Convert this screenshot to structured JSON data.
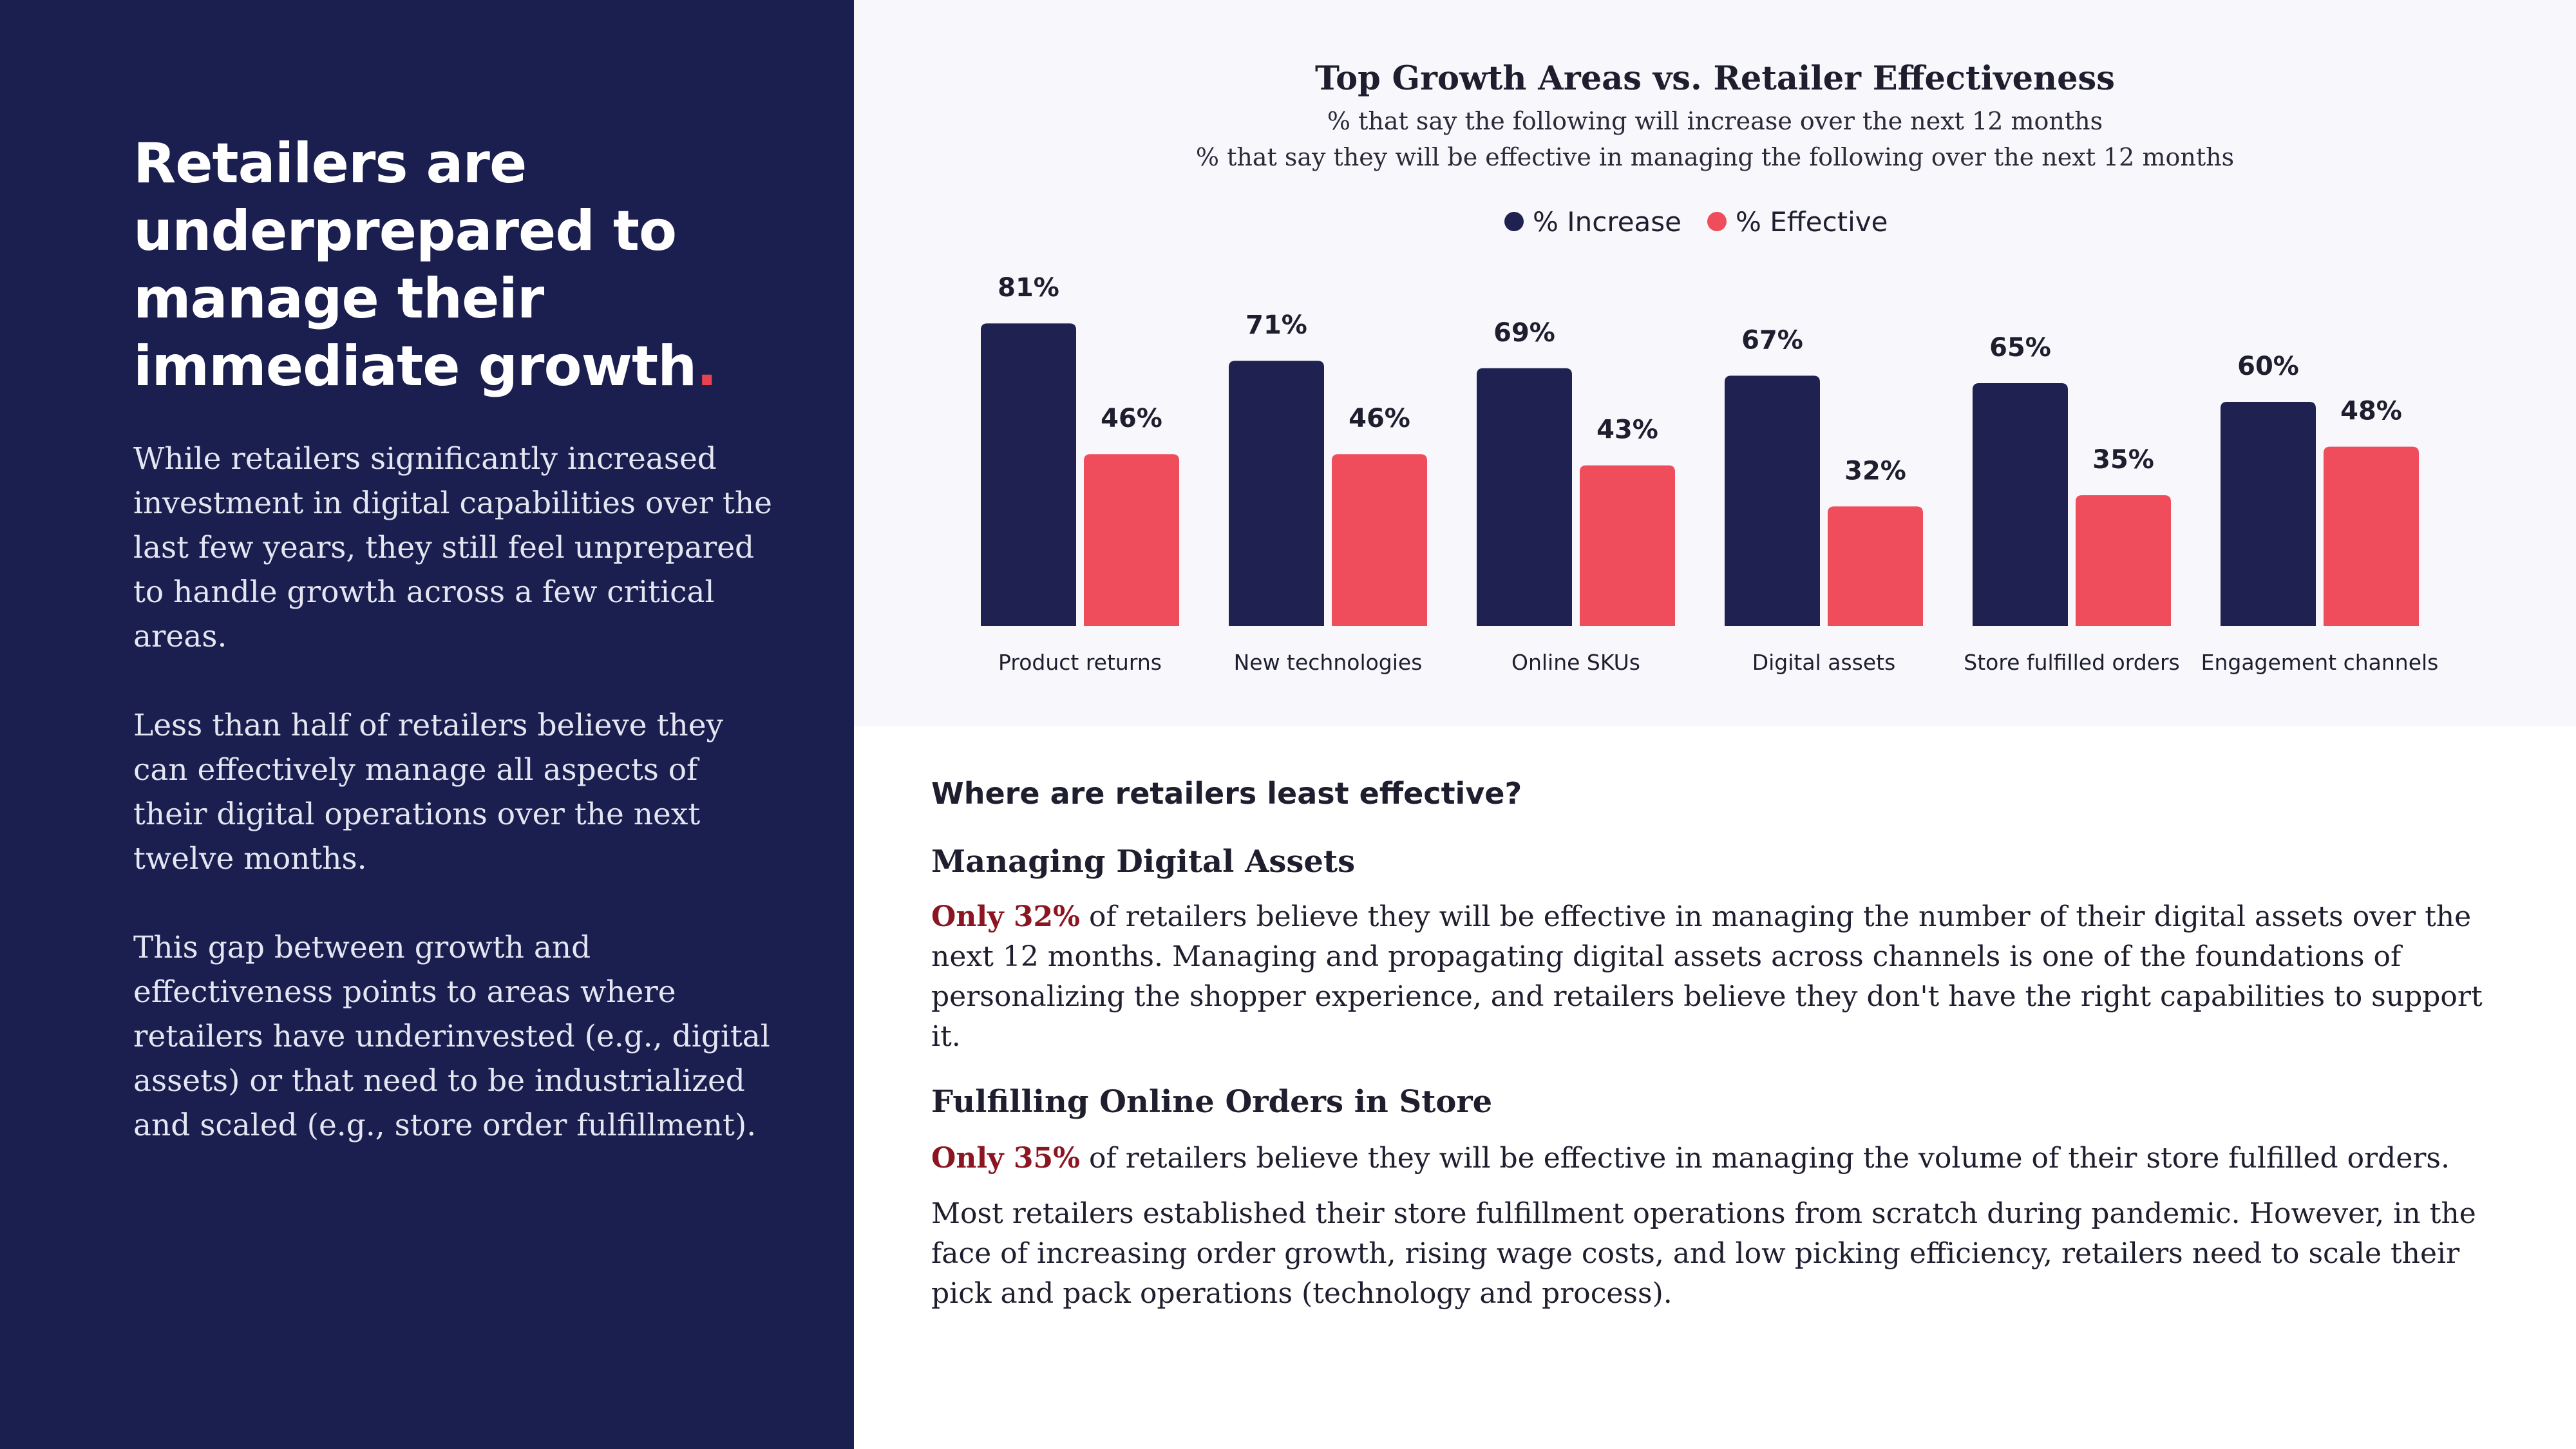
{
  "left": {
    "headline": "Retailers are underprepared to manage their immediate growth",
    "headline_dot": ".",
    "paragraphs": [
      "While retailers significantly increased investment in digital capabilities over the last few years, they still feel unprepared to handle growth across a few critical areas.",
      "Less than half of retailers believe they can effectively manage all aspects of their digital operations over the next twelve months.",
      "This gap between growth and effectiveness points to areas where retailers have underinvested (e.g., digital assets) or that need to be industrialized and scaled (e.g., store order fulfillment)."
    ]
  },
  "colors": {
    "navy": "#1b1f4f",
    "bar_increase": "#1f2250",
    "bar_effective": "#ef4d5c",
    "accent_red": "#8b1520"
  },
  "chart_data": {
    "type": "bar",
    "title": "Top Growth Areas vs. Retailer Effectiveness",
    "subtitle_lines": [
      "% that say the following will increase over the next 12 months",
      "% that say they will be effective in managing the following over the next 12 months"
    ],
    "categories": [
      "Product returns",
      "New technologies",
      "Online SKUs",
      "Digital assets",
      "Store fulfilled orders",
      "Engagement channels"
    ],
    "series": [
      {
        "name": "% Increase",
        "values": [
          81,
          71,
          69,
          67,
          65,
          60
        ],
        "color": "#1f2250"
      },
      {
        "name": "% Effective",
        "values": [
          46,
          46,
          43,
          32,
          35,
          48
        ],
        "color": "#ef4d5c"
      }
    ],
    "value_suffix": "%",
    "ylim": [
      0,
      100
    ],
    "grid": false,
    "legend_position": "top-center"
  },
  "right": {
    "question": "Where are retailers least effective?",
    "section1": {
      "heading": "Managing Digital Assets",
      "highlight": "Only 32%",
      "text": " of retailers believe they will be effective in managing the number of their digital assets over the next 12 months. Managing and propagating digital assets across channels is one of the foundations of personalizing the shopper experience, and retailers believe they don't have the right capabilities to support it."
    },
    "section2": {
      "heading": "Fulfilling Online Orders in Store",
      "highlight": "Only 35%",
      "text": " of retailers believe they will be effective in managing the volume of their store fulfilled orders.",
      "text2": "Most retailers established their store fulfillment operations from scratch during pandemic. However, in the face of increasing order growth, rising wage costs, and low picking efficiency, retailers need to scale their pick and pack operations (technology and process)."
    }
  }
}
